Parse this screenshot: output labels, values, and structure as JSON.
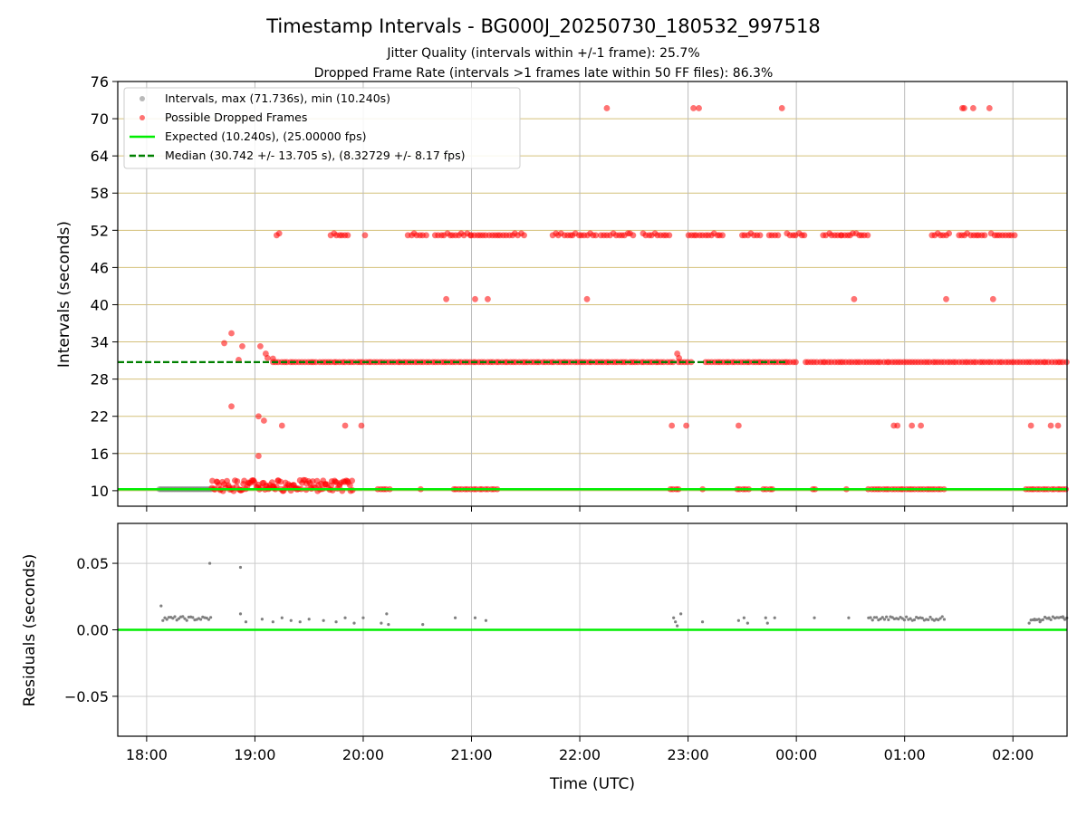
{
  "chart_data": [
    {
      "type": "scatter",
      "title": "Timestamp Intervals - BG000J_20250730_180532_997518",
      "subtitle_lines": [
        "Jitter Quality (intervals within +/-1 frame): 25.7%",
        "Dropped Frame Rate (intervals >1 frames late within 50 FF files): 86.3%"
      ],
      "xlabel": "",
      "ylabel": "Intervals (seconds)",
      "xlim": [
        "17:44",
        "02:30"
      ],
      "ylim": [
        7.5,
        76
      ],
      "ytick_labels": [
        "10",
        "16",
        "22",
        "28",
        "34",
        "40",
        "46",
        "52",
        "58",
        "64",
        "70",
        "76"
      ],
      "xtick_labels": [
        "18:00",
        "19:00",
        "20:00",
        "21:00",
        "22:00",
        "23:00",
        "00:00",
        "01:00",
        "02:00"
      ],
      "grid": "horizontal tan lines at y ticks, vertical gray lines at x ticks",
      "legend_position": "upper-left",
      "legend": [
        "Intervals, max (71.736s), min (10.240s)",
        "Possible Dropped Frames",
        "Expected (10.240s), (25.00000 fps)",
        "Median (30.742 +/- 13.705 s), (8.32729 +/- 8.17 fps)"
      ],
      "series": [
        {
          "name": "Intervals, max (71.736s), min (10.240s)",
          "color": "#808080",
          "description": "dense run of gray points at 10.24 s",
          "x_range": [
            "18:07",
            "18:36"
          ],
          "y": 10.24
        },
        {
          "name": "Possible Dropped Frames",
          "color": "#ff0000",
          "points": [
            {
              "x": "22:15",
              "y": 71.7
            },
            {
              "x": "23:03",
              "y": 71.7
            },
            {
              "x": "23:06",
              "y": 71.7
            },
            {
              "x": "23:52",
              "y": 71.7
            },
            {
              "x": "01:32",
              "y": 71.7
            },
            {
              "x": "01:33",
              "y": 71.7
            },
            {
              "x": "01:38",
              "y": 71.7
            },
            {
              "x": "01:47",
              "y": 71.7
            },
            {
              "x": "18:47",
              "y": 35.4
            },
            {
              "x": "18:43",
              "y": 33.8
            },
            {
              "x": "18:53",
              "y": 33.3
            },
            {
              "x": "19:03",
              "y": 33.3
            },
            {
              "x": "19:06",
              "y": 32.1
            },
            {
              "x": "19:07",
              "y": 31.4
            },
            {
              "x": "18:51",
              "y": 31.1
            },
            {
              "x": "19:10",
              "y": 31.3
            },
            {
              "x": "22:54",
              "y": 32.1
            },
            {
              "x": "22:55",
              "y": 31.4
            },
            {
              "x": "20:46",
              "y": 40.9
            },
            {
              "x": "21:02",
              "y": 40.9
            },
            {
              "x": "21:09",
              "y": 40.9
            },
            {
              "x": "22:04",
              "y": 40.9
            },
            {
              "x": "00:32",
              "y": 40.9
            },
            {
              "x": "01:23",
              "y": 40.9
            },
            {
              "x": "01:49",
              "y": 40.9
            },
            {
              "x": "18:47",
              "y": 23.6
            },
            {
              "x": "19:02",
              "y": 22.0
            },
            {
              "x": "19:05",
              "y": 21.3
            },
            {
              "x": "19:15",
              "y": 20.5
            },
            {
              "x": "19:50",
              "y": 20.5
            },
            {
              "x": "19:59",
              "y": 20.5
            },
            {
              "x": "22:51",
              "y": 20.5
            },
            {
              "x": "22:59",
              "y": 20.5
            },
            {
              "x": "23:28",
              "y": 20.5
            },
            {
              "x": "00:54",
              "y": 20.5
            },
            {
              "x": "00:56",
              "y": 20.5
            },
            {
              "x": "01:04",
              "y": 20.5
            },
            {
              "x": "01:09",
              "y": 20.5
            },
            {
              "x": "02:10",
              "y": 20.5
            },
            {
              "x": "02:21",
              "y": 20.5
            },
            {
              "x": "02:25",
              "y": 20.5
            },
            {
              "x": "19:02",
              "y": 15.6
            }
          ],
          "bands": [
            {
              "y": 51.2,
              "x_ranges": [
                [
                  "19:12",
                  "19:15"
                ],
                [
                  "19:42",
                  "19:52"
                ],
                [
                  "20:01",
                  "20:02"
                ],
                [
                  "20:25",
                  "20:35"
                ],
                [
                  "20:40",
                  "21:00"
                ],
                [
                  "21:00",
                  "21:30"
                ],
                [
                  "21:45",
                  "22:10"
                ],
                [
                  "22:12",
                  "22:30"
                ],
                [
                  "22:35",
                  "22:50"
                ],
                [
                  "23:00",
                  "23:20"
                ],
                [
                  "23:30",
                  "23:40"
                ],
                [
                  "23:45",
                  "23:50"
                ],
                [
                  "23:55",
                  "00:06"
                ],
                [
                  "00:15",
                  "00:25"
                ],
                [
                  "00:25",
                  "00:40"
                ],
                [
                  "01:15",
                  "01:25"
                ],
                [
                  "01:30",
                  "01:45"
                ],
                [
                  "01:48",
                  "02:02"
                ]
              ]
            },
            {
              "y": 30.742,
              "x_ranges": [
                [
                  "19:10",
                  "22:52"
                ],
                [
                  "22:55",
                  "23:03"
                ],
                [
                  "23:10",
                  "00:00"
                ],
                [
                  "00:05",
                  "02:30"
                ]
              ]
            },
            {
              "y": 10.24,
              "x_ranges": [
                [
                  "18:36",
                  "19:10"
                ],
                [
                  "19:10",
                  "19:55"
                ],
                [
                  "20:08",
                  "20:15"
                ],
                [
                  "20:32",
                  "20:33"
                ],
                [
                  "20:50",
                  "21:15"
                ],
                [
                  "22:50",
                  "22:55"
                ],
                [
                  "23:08",
                  "23:09"
                ],
                [
                  "23:27",
                  "23:35"
                ],
                [
                  "23:42",
                  "23:47"
                ],
                [
                  "00:09",
                  "00:11"
                ],
                [
                  "00:28",
                  "00:29"
                ],
                [
                  "00:40",
                  "01:22"
                ],
                [
                  "02:07",
                  "02:30"
                ]
              ]
            }
          ]
        },
        {
          "name": "Expected (10.240s), (25.00000 fps)",
          "color": "#00ee00",
          "y": 10.24
        },
        {
          "name": "Median (30.742 +/- 13.705 s), (8.32729 +/- 8.17 fps)",
          "color": "#008000",
          "y": 30.742,
          "x_range": [
            "17:44",
            "23:55"
          ]
        }
      ]
    },
    {
      "type": "scatter",
      "title": "",
      "xlabel": "Time (UTC)",
      "ylabel": "Residuals (seconds)",
      "xlim": [
        "17:44",
        "02:30"
      ],
      "ylim": [
        -0.08,
        0.08
      ],
      "ytick_labels": [
        "−0.05",
        "0.00",
        "0.05"
      ],
      "xtick_labels": [
        "18:00",
        "19:00",
        "20:00",
        "21:00",
        "22:00",
        "23:00",
        "00:00",
        "01:00",
        "02:00"
      ],
      "grid": "both axes, light gray",
      "series": [
        {
          "name": "",
          "color": "#808080",
          "points": [
            {
              "x": "18:08",
              "y": 0.018
            },
            {
              "x": "18:35",
              "y": 0.05
            },
            {
              "x": "18:52",
              "y": 0.047
            },
            {
              "x": "18:52",
              "y": 0.012
            },
            {
              "x": "18:55",
              "y": 0.006
            },
            {
              "x": "19:04",
              "y": 0.008
            },
            {
              "x": "19:10",
              "y": 0.006
            },
            {
              "x": "19:15",
              "y": 0.009
            },
            {
              "x": "19:20",
              "y": 0.007
            },
            {
              "x": "19:25",
              "y": 0.006
            },
            {
              "x": "19:30",
              "y": 0.008
            },
            {
              "x": "19:38",
              "y": 0.007
            },
            {
              "x": "19:45",
              "y": 0.006
            },
            {
              "x": "19:50",
              "y": 0.009
            },
            {
              "x": "19:55",
              "y": 0.005
            },
            {
              "x": "20:00",
              "y": 0.009
            },
            {
              "x": "20:10",
              "y": 0.005
            },
            {
              "x": "20:13",
              "y": 0.012
            },
            {
              "x": "20:14",
              "y": 0.004
            },
            {
              "x": "20:33",
              "y": 0.004
            },
            {
              "x": "20:51",
              "y": 0.009
            },
            {
              "x": "21:02",
              "y": 0.009
            },
            {
              "x": "21:08",
              "y": 0.007
            },
            {
              "x": "22:52",
              "y": 0.009
            },
            {
              "x": "22:53",
              "y": 0.006
            },
            {
              "x": "22:54",
              "y": 0.003
            },
            {
              "x": "22:56",
              "y": 0.012
            },
            {
              "x": "23:08",
              "y": 0.006
            },
            {
              "x": "23:28",
              "y": 0.007
            },
            {
              "x": "23:31",
              "y": 0.009
            },
            {
              "x": "23:33",
              "y": 0.005
            },
            {
              "x": "23:43",
              "y": 0.009
            },
            {
              "x": "23:44",
              "y": 0.005
            },
            {
              "x": "23:48",
              "y": 0.009
            },
            {
              "x": "00:10",
              "y": 0.009
            },
            {
              "x": "00:29",
              "y": 0.009
            },
            {
              "x": "02:09",
              "y": 0.005
            },
            {
              "x": "02:12",
              "y": 0.008
            },
            {
              "x": "02:15",
              "y": 0.006
            },
            {
              "x": "02:20",
              "y": 0.009
            },
            {
              "x": "02:28",
              "y": 0.009
            }
          ],
          "bands": [
            {
              "y": 0.0085,
              "x_ranges": [
                [
                  "18:09",
                  "18:36"
                ]
              ]
            },
            {
              "y": 0.0085,
              "x_ranges": [
                [
                  "00:40",
                  "01:22"
                ],
                [
                  "02:10",
                  "02:30"
                ]
              ]
            }
          ]
        },
        {
          "name": "",
          "color": "#00ee00",
          "y": 0.0
        }
      ]
    }
  ]
}
